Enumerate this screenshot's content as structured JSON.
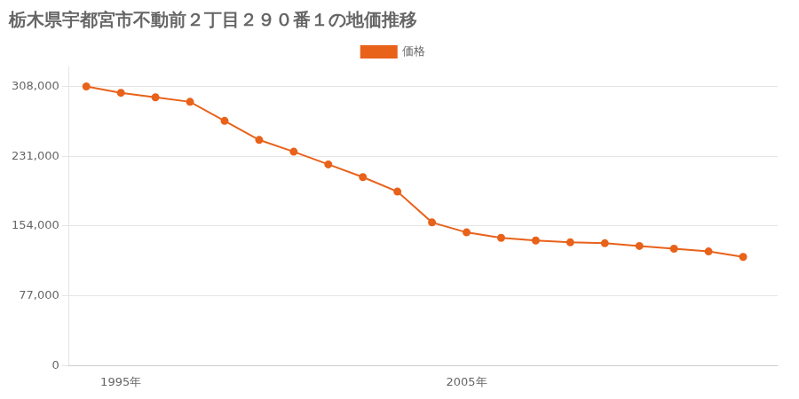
{
  "chart_data": {
    "type": "line",
    "title": "栃木県宇都宮市不動前２丁目２９０番１の地価推移",
    "x": [
      1994,
      1995,
      1996,
      1997,
      1998,
      1999,
      2000,
      2001,
      2002,
      2003,
      2004,
      2005,
      2006,
      2007,
      2008,
      2009,
      2010,
      2011,
      2012,
      2013
    ],
    "series": [
      {
        "name": "価格",
        "color": "#e8621a",
        "marker": "circle",
        "values": [
          308000,
          301000,
          296000,
          291000,
          270000,
          249000,
          236000,
          222000,
          208000,
          192000,
          158000,
          147000,
          141000,
          138000,
          136000,
          135000,
          132000,
          129000,
          126000,
          120000
        ]
      }
    ],
    "xlim": [
      1993.5,
      2014
    ],
    "xticks": [
      {
        "value": 1995,
        "label": "1995年"
      },
      {
        "value": 2005,
        "label": "2005年"
      }
    ],
    "ylim": [
      0,
      330000
    ],
    "yticks": [
      0,
      {
        "value": 77000,
        "label": "77,000"
      },
      {
        "value": 154000,
        "label": "154,000"
      },
      {
        "value": 231000,
        "label": "231,000"
      },
      {
        "value": 308000,
        "label": "308,000"
      }
    ],
    "grid": "y",
    "legend": "top"
  }
}
